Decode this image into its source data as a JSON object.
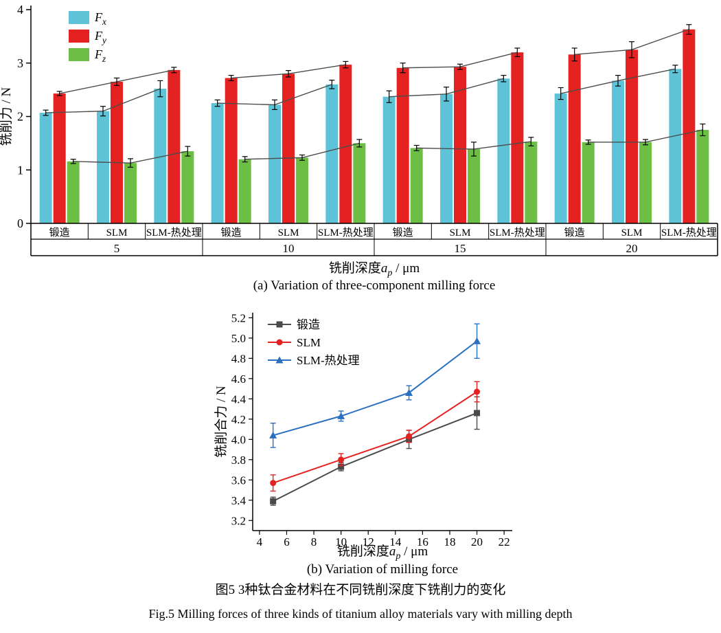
{
  "figure": {
    "caption_a": "(a) Variation of three-component milling force",
    "caption_b": "(b) Variation of milling force",
    "caption_cn": "图5  3种钛合金材料在不同铣削深度下铣削力的变化",
    "caption_en": "Fig.5  Milling forces of three kinds of titanium alloy materials vary with milling depth"
  },
  "chart_data": [
    {
      "id": "chart-a",
      "type": "bar",
      "ylabel": "铣削力 / N",
      "xlabel": {
        "pre": "铣削深度",
        "var": "a",
        "sub": "p",
        "post": " / μm"
      },
      "ylim": [
        0,
        4
      ],
      "yticks": [
        0,
        1,
        2,
        3,
        4
      ],
      "depth_groups": [
        "5",
        "10",
        "15",
        "20"
      ],
      "materials": [
        "锻造",
        "SLM",
        "SLM-热处理"
      ],
      "connector_color": "#4d4d4d",
      "series": [
        {
          "name": {
            "var": "F",
            "sub": "x"
          },
          "color": "#5fc3d8",
          "values": [
            [
              2.07,
              2.1,
              2.52
            ],
            [
              2.25,
              2.22,
              2.6
            ],
            [
              2.37,
              2.42,
              2.71
            ],
            [
              2.43,
              2.67,
              2.89
            ]
          ],
          "errors": [
            [
              0.05,
              0.09,
              0.15
            ],
            [
              0.06,
              0.09,
              0.08
            ],
            [
              0.11,
              0.13,
              0.06
            ],
            [
              0.11,
              0.1,
              0.07
            ]
          ]
        },
        {
          "name": {
            "var": "F",
            "sub": "y"
          },
          "color": "#e32221",
          "values": [
            [
              2.43,
              2.65,
              2.87
            ],
            [
              2.72,
              2.8,
              2.97
            ],
            [
              2.91,
              2.93,
              3.2
            ],
            [
              3.16,
              3.25,
              3.63
            ]
          ],
          "errors": [
            [
              0.04,
              0.07,
              0.05
            ],
            [
              0.05,
              0.06,
              0.06
            ],
            [
              0.09,
              0.05,
              0.08
            ],
            [
              0.12,
              0.15,
              0.09
            ]
          ]
        },
        {
          "name": {
            "var": "F",
            "sub": "z"
          },
          "color": "#6cbe45",
          "values": [
            [
              1.16,
              1.13,
              1.35
            ],
            [
              1.2,
              1.23,
              1.5
            ],
            [
              1.41,
              1.39,
              1.53
            ],
            [
              1.52,
              1.52,
              1.75
            ]
          ],
          "errors": [
            [
              0.04,
              0.08,
              0.09
            ],
            [
              0.05,
              0.05,
              0.07
            ],
            [
              0.05,
              0.13,
              0.08
            ],
            [
              0.04,
              0.05,
              0.11
            ]
          ]
        }
      ]
    },
    {
      "id": "chart-b",
      "type": "line",
      "ylabel": "铣削合力 / N",
      "xlabel": {
        "pre": "铣削深度",
        "var": "a",
        "sub": "p",
        "post": " / μm"
      },
      "xlim": [
        3.5,
        22.6
      ],
      "xticks": [
        4,
        6,
        8,
        10,
        12,
        14,
        16,
        18,
        20,
        22
      ],
      "ylim": [
        3.1,
        5.25
      ],
      "yticks": [
        3.2,
        3.4,
        3.6,
        3.8,
        4.0,
        4.2,
        4.4,
        4.6,
        4.8,
        5.0,
        5.2
      ],
      "x": [
        5,
        10,
        15,
        20
      ],
      "legend_position": "top-left",
      "series": [
        {
          "name": "锻造",
          "color": "#4a4a4a",
          "marker": "square",
          "values": [
            3.39,
            3.73,
            4.0,
            4.26
          ],
          "errors": [
            0.04,
            0.04,
            0.09,
            0.16
          ]
        },
        {
          "name": "SLM",
          "color": "#e32221",
          "marker": "circle",
          "values": [
            3.57,
            3.8,
            4.03,
            4.47
          ],
          "errors": [
            0.08,
            0.06,
            0.06,
            0.1
          ]
        },
        {
          "name": "SLM-热处理",
          "color": "#2a6fc0",
          "marker": "triangle",
          "values": [
            4.04,
            4.23,
            4.46,
            4.97
          ],
          "errors": [
            0.12,
            0.05,
            0.07,
            0.17
          ]
        }
      ]
    }
  ]
}
